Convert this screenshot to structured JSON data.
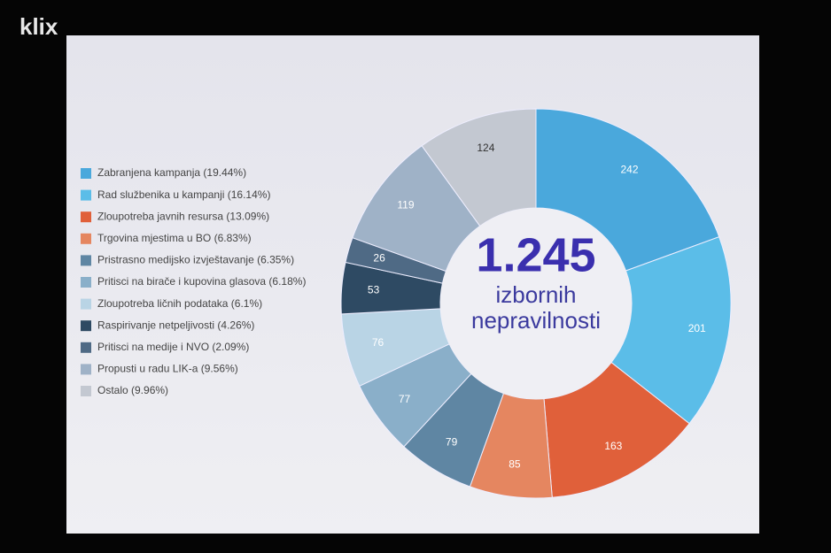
{
  "watermark": "klix",
  "chart_data": {
    "type": "donut",
    "center_value": "1.245",
    "center_text": [
      "izbornih",
      "nepravilnosti"
    ],
    "categories": [
      "Zabranjena kampanja (19.44%)",
      "Rad službenika u kampanji (16.14%)",
      "Zloupotreba javnih resursa (13.09%)",
      "Trgovina mjestima u BO (6.83%)",
      "Pristrasno medijsko izvještavanje (6.35%)",
      "Pritisci na birače i kupovina glasova (6.18%)",
      "Zloupotreba ličnih podataka (6.1%)",
      "Raspirivanje netpeljivosti (4.26%)",
      "Pritisci na medije i NVO (2.09%)",
      "Propusti u radu LIK-a (9.56%)",
      "Ostalo (9.96%)"
    ],
    "values": [
      242,
      201,
      163,
      85,
      79,
      77,
      76,
      53,
      26,
      119,
      124
    ],
    "colors": [
      "#4aa8dc",
      "#5bbde8",
      "#e0603a",
      "#e58660",
      "#5f86a3",
      "#8aafc9",
      "#b9d4e5",
      "#2e4a63",
      "#4f6a85",
      "#9fb2c7",
      "#c3c8d1"
    ],
    "legend": "left"
  }
}
